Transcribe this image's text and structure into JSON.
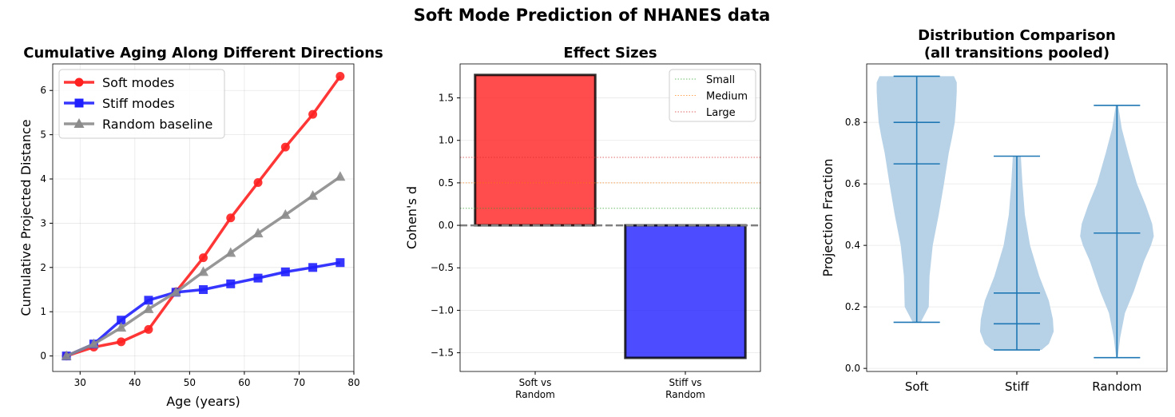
{
  "figure": {
    "suptitle": "Soft Mode Prediction of NHANES data"
  },
  "chart_data": [
    {
      "type": "line",
      "title": "Cumulative Aging Along Different Directions",
      "xlabel": "Age (years)",
      "ylabel": "Cumulative Projected Distance",
      "xlim": [
        25,
        80
      ],
      "ylim": [
        -0.35,
        6.6
      ],
      "xticks": [
        30,
        40,
        50,
        60,
        70,
        80
      ],
      "yticks": [
        0,
        1,
        2,
        3,
        4,
        5,
        6
      ],
      "grid": true,
      "legend_position": "upper-left",
      "x": [
        27.5,
        32.5,
        37.5,
        42.5,
        47.5,
        52.5,
        57.5,
        62.5,
        67.5,
        72.5,
        77.5
      ],
      "series": [
        {
          "name": "Soft modes",
          "color": "#ff2020",
          "marker": "circle",
          "values": [
            0,
            0.2,
            0.32,
            0.6,
            1.45,
            2.22,
            3.12,
            3.92,
            4.72,
            5.46,
            6.32
          ]
        },
        {
          "name": "Stiff modes",
          "color": "#2020ff",
          "marker": "square",
          "values": [
            0,
            0.27,
            0.81,
            1.26,
            1.44,
            1.5,
            1.63,
            1.76,
            1.9,
            2.0,
            2.11
          ]
        },
        {
          "name": "Random baseline",
          "color": "#8c8c8c",
          "marker": "triangle",
          "values": [
            0,
            0.27,
            0.64,
            1.06,
            1.44,
            1.9,
            2.33,
            2.77,
            3.19,
            3.62,
            4.05
          ]
        }
      ]
    },
    {
      "type": "bar",
      "title": "Effect Sizes",
      "ylabel": "Cohen's d",
      "categories": [
        "Soft vs\nRandom",
        "Stiff vs\nRandom"
      ],
      "values": [
        1.77,
        -1.56
      ],
      "colors": [
        "#ff2020",
        "#2020ff"
      ],
      "ylim": [
        -1.72,
        1.9
      ],
      "yticks": [
        -1.5,
        -1.0,
        -0.5,
        0.0,
        0.5,
        1.0,
        1.5
      ],
      "grid": true,
      "reference_lines": [
        {
          "name": "Small",
          "value": 0.2,
          "color": "#2ca02c"
        },
        {
          "name": "Medium",
          "value": 0.5,
          "color": "#ff7f0e"
        },
        {
          "name": "Large",
          "value": 0.8,
          "color": "#d62728"
        }
      ],
      "zero_line": {
        "value": 0,
        "color": "#808080",
        "style": "dashed"
      },
      "legend_position": "upper-right"
    },
    {
      "type": "violin",
      "title": "Distribution Comparison\n(all transitions pooled)",
      "ylabel": "Projection Fraction",
      "categories": [
        "Soft",
        "Stiff",
        "Random"
      ],
      "ylim": [
        -0.01,
        0.99
      ],
      "yticks": [
        0.0,
        0.2,
        0.4,
        0.6,
        0.8
      ],
      "grid": true,
      "color": "#1f77b4",
      "fill_color": "#b7d2e7",
      "violins": [
        {
          "name": "Soft",
          "min": 0.15,
          "max": 0.95,
          "mean": 0.8,
          "median": 0.665,
          "density": [
            [
              0.15,
              0.1
            ],
            [
              0.2,
              0.3
            ],
            [
              0.3,
              0.32
            ],
            [
              0.4,
              0.4
            ],
            [
              0.5,
              0.55
            ],
            [
              0.6,
              0.68
            ],
            [
              0.7,
              0.8
            ],
            [
              0.75,
              0.88
            ],
            [
              0.8,
              0.95
            ],
            [
              0.85,
              0.98
            ],
            [
              0.9,
              1.0
            ],
            [
              0.93,
              1.0
            ],
            [
              0.95,
              0.93
            ]
          ]
        },
        {
          "name": "Stiff",
          "min": 0.06,
          "max": 0.69,
          "mean": 0.245,
          "median": 0.145,
          "density": [
            [
              0.06,
              0.62
            ],
            [
              0.08,
              0.8
            ],
            [
              0.12,
              0.92
            ],
            [
              0.16,
              0.9
            ],
            [
              0.22,
              0.8
            ],
            [
              0.3,
              0.56
            ],
            [
              0.4,
              0.33
            ],
            [
              0.5,
              0.2
            ],
            [
              0.6,
              0.14
            ],
            [
              0.69,
              0.1
            ]
          ]
        },
        {
          "name": "Random",
          "min": 0.035,
          "max": 0.855,
          "mean": 0.44,
          "median": 0.44,
          "density": [
            [
              0.035,
              0.02
            ],
            [
              0.1,
              0.08
            ],
            [
              0.18,
              0.2
            ],
            [
              0.25,
              0.42
            ],
            [
              0.3,
              0.55
            ],
            [
              0.35,
              0.68
            ],
            [
              0.4,
              0.85
            ],
            [
              0.43,
              0.92
            ],
            [
              0.47,
              0.88
            ],
            [
              0.53,
              0.72
            ],
            [
              0.6,
              0.5
            ],
            [
              0.7,
              0.28
            ],
            [
              0.78,
              0.12
            ],
            [
              0.855,
              0.03
            ]
          ]
        }
      ]
    }
  ]
}
